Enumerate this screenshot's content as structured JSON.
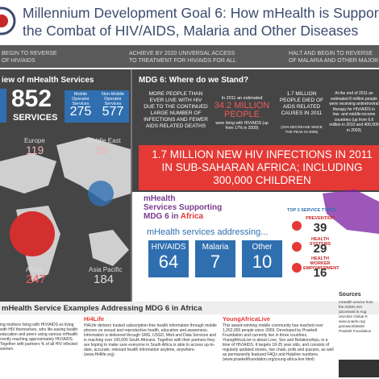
{
  "header": {
    "title_line1": "Millennium Development Goal 6: How mHealth is Suppor",
    "title_line2": "the Combat of HIV/AIDS, Malaria and Other Diseases"
  },
  "targets": [
    "BEGIN TO REVERSE\nOF HIV/AIDS",
    "ACHIEVE BY 2020 UNIVERSAL ACCESS\nTO TREATMENT FOR HIV/AIDS FOR ALL",
    "HALT AND BEGIN TO REVERSE\nOF MALARIA AND OTHER MAJOR"
  ],
  "overview": {
    "title": "iew of mHealth Services",
    "total": "852",
    "total_label": "SERVICES",
    "mobile": {
      "label": "Mobile Operator Services",
      "value": "275"
    },
    "non_mobile": {
      "label": "Non-Mobile Operator Services",
      "value": "577"
    },
    "regions": [
      {
        "name": "Europe",
        "value": "119"
      },
      {
        "name": "Middle East",
        "value": "39"
      },
      {
        "name": "Africa",
        "value": "247"
      },
      {
        "name": "Asia Pacific",
        "value": "184"
      }
    ]
  },
  "stand": {
    "title": "MDG 6: Where do we Stand?",
    "stat1": "MORE PEOPLE THAN EVER LIVE WITH HIV DUE TO THE CONTINUED LARGE NUMBER OF INFECTIONS AND FEWER AIDS RELATED DEATHS",
    "stat2_pre": "In 2011 an estimated",
    "stat2": "34.2 MILLION PEOPLE",
    "stat2_post": "were living with HIV/AIDS (up from 17% in 2009)",
    "stat3": "1.7 MILLION PEOPLE DIED OF AIDS RELATED CAUSES IN 2011",
    "stat3_post": "(24% DECREASE SINCE THE PEAK IN 2005)",
    "stat4": "At the end of 2011 an estimated 8 million people were receiving antiretroviral therapy for HIV/AIDS in low- and middle-income countries (up from 6.6 million in 2010 and 400,000 in 2003)"
  },
  "banner": "1.7 MILLION NEW HIV INFECTIONS IN 2011 IN SUB-SAHARAN AFRICA; INCLUDING 300,000 CHILDREN",
  "africa": {
    "title_line1": "mHealth",
    "title_line2": "Services Supporting",
    "title_line3a": "MDG 6 in ",
    "title_line3b": "Africa",
    "addressing": "mHealth services addressing...",
    "areas": [
      {
        "name": "HIV/AIDS",
        "value": "64"
      },
      {
        "name": "Malaria",
        "value": "7"
      },
      {
        "name": "Other",
        "value": "10"
      }
    ],
    "top_title": "TOP 3 SERVICE TYPES",
    "top": [
      {
        "name": "PREVENTION",
        "value": "39"
      },
      {
        "name": "HEALTH SYSTEMS",
        "value": "29"
      },
      {
        "name": "HEALTH WORKER EMPOWERMENT",
        "value": "16"
      }
    ]
  },
  "examples": {
    "title": "mHealth Service Examples Addressing MDG 6 in Africa",
    "col1": "ing mothers living with HIV/AIDS es living with HIV themselves, who life-saving health education and peers using various mHealth rrently reaching approximately HIV/AIDS. Together with partners % of all HIV infected women.",
    "col2_title": "Hi4Life",
    "col2": "Hi4Life delivers trusted subscription-free health information through mobile phones on sexual and reproductive health, education and awareness. Information is delivered through SMS, USSD, Mixit and Data Services and is reaching over 100,000 South Africans. Together with their partners they are hoping to make sure everyone in South Africa is able to access up-to-date, accurate, relevant health information anytime, anywhere. (www.Hi4life.org)",
    "col3_title": "YoungAfricaLive",
    "col3": "This award-winning mobile community has reached over 1,262,000 people since 2009. Developed by Praekelt Foundation and currently live in three countries, YoungAfricaLive is about Love, Sex and Relationships, in a time of HIV/AIDS. It targets 18-25 year olds, and consists of regularly updated stories, live chats, polls and quizzes, as well as permanently featured FAQs and Helpline numbers. (www.praekeltfoundation.org/young-africa-live.html)",
    "sources_title": "Sources",
    "sources": "mHealth service from the GSMA mH (accessed in Aug UNAIDS Global R www.unaids.org/ gsmaworldwide/ Praekelt Foundation"
  }
}
